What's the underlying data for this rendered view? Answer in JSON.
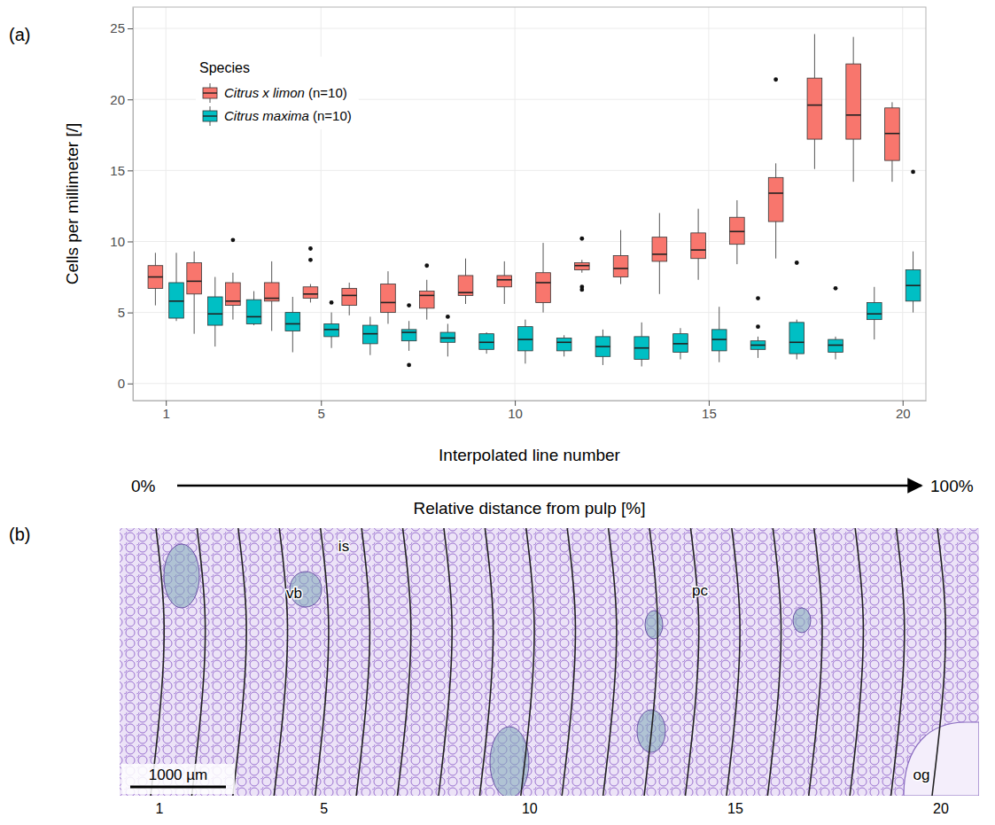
{
  "chart_data": {
    "type": "box",
    "x_label": "Interpolated line number",
    "y_label": "Cells per millimeter [/]",
    "legend_title": "Species",
    "legend": "top-left",
    "grid": true,
    "annotations": [
      "0%",
      "100%",
      "Relative distance from pulp [%]"
    ],
    "x": [
      1,
      2,
      3,
      4,
      5,
      6,
      7,
      8,
      9,
      10,
      11,
      12,
      13,
      14,
      15,
      16,
      17,
      18,
      19,
      20
    ],
    "xlim": [
      0.15,
      20.6
    ],
    "xticks": [
      1,
      5,
      10,
      15,
      20
    ],
    "ylim": [
      -1.2,
      26.5
    ],
    "yticks": [
      0,
      5,
      10,
      15,
      20,
      25
    ],
    "series": [
      {
        "name": "Citrus x limon (n=10)",
        "color": "#F8766D",
        "q1": [
          6.7,
          6.3,
          5.5,
          5.8,
          6.0,
          5.5,
          5.0,
          5.3,
          6.2,
          6.8,
          5.7,
          8.0,
          7.5,
          8.6,
          8.8,
          9.8,
          11.4,
          17.2,
          17.2,
          15.7
        ],
        "median": [
          7.5,
          7.2,
          5.8,
          6.0,
          6.3,
          6.2,
          5.7,
          6.2,
          6.4,
          7.3,
          7.1,
          8.3,
          8.1,
          9.1,
          9.4,
          10.7,
          13.4,
          19.6,
          18.9,
          17.6
        ],
        "q3": [
          8.3,
          8.5,
          7.1,
          7.1,
          6.8,
          6.7,
          7.0,
          6.5,
          7.6,
          7.6,
          7.8,
          8.5,
          9.0,
          10.3,
          10.6,
          11.7,
          14.5,
          21.5,
          22.5,
          19.4
        ],
        "whisker_low": [
          5.5,
          3.5,
          4.5,
          3.7,
          5.7,
          4.8,
          4.2,
          4.5,
          5.6,
          5.6,
          5.0,
          7.8,
          7.0,
          6.3,
          7.3,
          8.4,
          8.8,
          15.1,
          14.2,
          14.2
        ],
        "whisker_high": [
          9.2,
          9.3,
          7.8,
          8.6,
          7.0,
          7.1,
          7.9,
          7.3,
          8.8,
          8.6,
          9.9,
          8.7,
          10.8,
          12.0,
          12.3,
          12.9,
          15.5,
          24.6,
          24.4,
          19.8
        ],
        "outliers": [
          [],
          [],
          [
            10.1
          ],
          [],
          [
            9.5,
            8.7
          ],
          [],
          [],
          [
            8.3
          ],
          [],
          [],
          [],
          [
            10.2,
            6.8,
            6.6
          ],
          [],
          [],
          [],
          [],
          [
            21.4
          ],
          [],
          [],
          []
        ]
      },
      {
        "name": "Citrus maxima (n=10)",
        "color": "#00BFC4",
        "q1": [
          4.6,
          4.1,
          4.2,
          3.7,
          3.3,
          2.8,
          3.0,
          2.9,
          2.4,
          2.3,
          2.3,
          1.9,
          1.7,
          2.2,
          2.3,
          2.4,
          2.1,
          2.2,
          4.5,
          5.8
        ],
        "median": [
          5.8,
          4.9,
          4.7,
          4.2,
          3.8,
          3.5,
          3.6,
          3.2,
          2.9,
          3.1,
          2.9,
          2.6,
          2.5,
          2.8,
          3.1,
          2.7,
          2.9,
          2.7,
          4.9,
          6.9
        ],
        "q3": [
          7.1,
          6.1,
          5.9,
          5.0,
          4.2,
          4.1,
          3.8,
          3.6,
          3.5,
          4.0,
          3.2,
          3.3,
          3.3,
          3.5,
          3.8,
          3.0,
          4.3,
          3.1,
          5.7,
          8.0
        ],
        "whisker_low": [
          4.4,
          2.6,
          4.1,
          2.2,
          2.5,
          2.0,
          2.3,
          1.9,
          2.1,
          1.4,
          1.9,
          1.3,
          1.2,
          1.7,
          1.5,
          1.8,
          1.7,
          1.7,
          3.1,
          5.0
        ],
        "whisker_high": [
          9.2,
          7.5,
          6.5,
          6.1,
          5.0,
          4.7,
          4.4,
          4.2,
          3.6,
          4.5,
          3.4,
          3.8,
          4.3,
          3.9,
          5.4,
          3.3,
          4.5,
          3.3,
          6.8,
          9.3
        ],
        "outliers": [
          [],
          [],
          [],
          [],
          [
            5.7
          ],
          [],
          [
            5.5,
            1.3
          ],
          [
            4.7
          ],
          [],
          [],
          [],
          [],
          [],
          [],
          [],
          [
            6.0,
            4.0
          ],
          [
            8.5
          ],
          [
            6.7
          ],
          [],
          [
            14.9
          ]
        ]
      }
    ]
  },
  "panel_labels": [
    "(a)",
    "(b)"
  ],
  "panel_b": {
    "line_count": 20,
    "line_numbers": [
      1,
      5,
      10,
      15,
      20
    ],
    "tissue_labels": [
      "is",
      "vb",
      "pc",
      "og"
    ],
    "scale_bar": "1000 µm"
  }
}
